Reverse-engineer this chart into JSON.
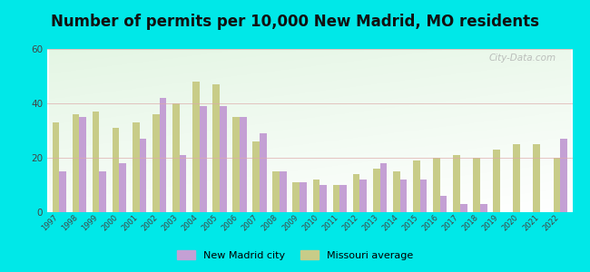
{
  "title": "Number of permits per 10,000 New Madrid, MO residents",
  "years": [
    1997,
    1998,
    1999,
    2000,
    2001,
    2002,
    2003,
    2004,
    2005,
    2006,
    2007,
    2008,
    2009,
    2010,
    2011,
    2012,
    2013,
    2014,
    2015,
    2016,
    2017,
    2018,
    2019,
    2020,
    2021,
    2022
  ],
  "city_values": [
    15,
    35,
    15,
    18,
    27,
    42,
    21,
    39,
    39,
    35,
    29,
    15,
    11,
    10,
    10,
    12,
    18,
    12,
    12,
    6,
    3,
    3,
    0,
    0,
    0,
    27
  ],
  "state_values": [
    33,
    36,
    37,
    31,
    33,
    36,
    40,
    48,
    47,
    35,
    26,
    15,
    11,
    12,
    10,
    14,
    16,
    15,
    19,
    20,
    21,
    20,
    23,
    25,
    25,
    20
  ],
  "city_color": "#c4a0d4",
  "state_color": "#c8cc88",
  "background_outer": "#00e8e8",
  "ylim": [
    0,
    60
  ],
  "yticks": [
    0,
    20,
    40,
    60
  ],
  "legend_city": "New Madrid city",
  "legend_state": "Missouri average",
  "watermark": "City-Data.com",
  "title_fontsize": 12,
  "bar_width": 0.35
}
